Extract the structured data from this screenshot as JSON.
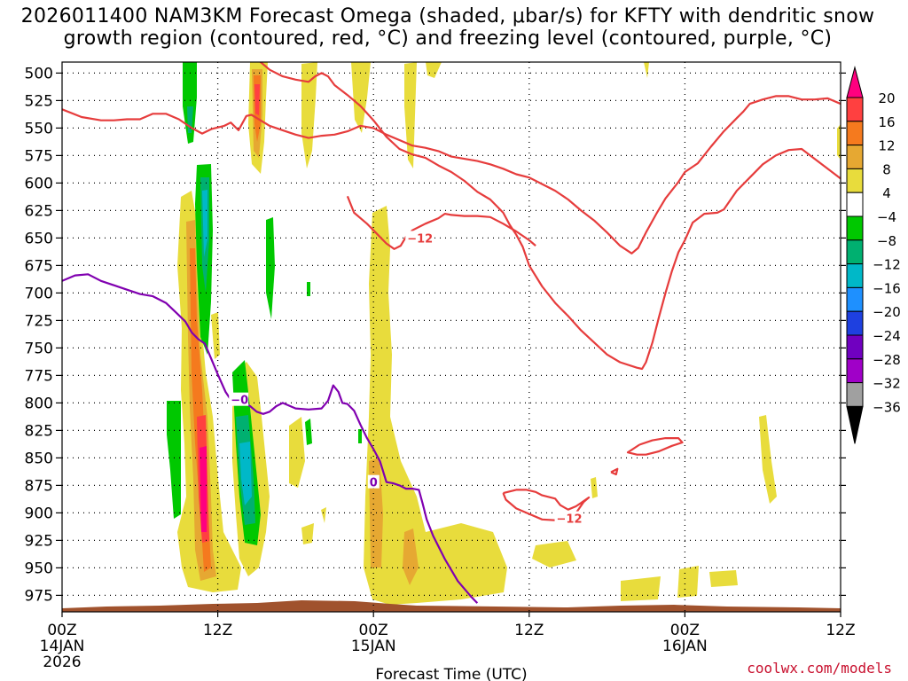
{
  "title": {
    "line1": "2026011400 NAM3KM Forecast Omega (shaded, μbar/s) for KFTY with dendritic snow",
    "line2": "growth region (contoured, red, °C) and freezing level (contoured, purple, °C)"
  },
  "credit": "coolwx.com/models",
  "chart_data": {
    "type": "heatmap",
    "xlabel": "Forecast Time (UTC)",
    "ylabel": "",
    "x_range_hours": [
      0,
      60
    ],
    "y_range_hpa": [
      490,
      990
    ],
    "y_ticks": [
      500,
      525,
      550,
      575,
      600,
      625,
      650,
      675,
      700,
      725,
      750,
      775,
      800,
      825,
      850,
      875,
      900,
      925,
      950,
      975
    ],
    "x_ticks": [
      {
        "hour": 0,
        "label1": "00Z",
        "label2": "14JAN",
        "label3": "2026"
      },
      {
        "hour": 12,
        "label1": "12Z",
        "label2": "",
        "label3": ""
      },
      {
        "hour": 24,
        "label1": "00Z",
        "label2": "15JAN",
        "label3": ""
      },
      {
        "hour": 36,
        "label1": "12Z",
        "label2": "",
        "label3": ""
      },
      {
        "hour": 48,
        "label1": "00Z",
        "label2": "16JAN",
        "label3": ""
      },
      {
        "hour": 60,
        "label1": "12Z",
        "label2": "",
        "label3": ""
      }
    ],
    "grid": "dotted",
    "colorbar": {
      "levels": [
        "20",
        "16",
        "12",
        "8",
        "4",
        "−4",
        "−8",
        "−12",
        "−16",
        "−20",
        "−24",
        "−28",
        "−32",
        "−36"
      ],
      "colors": [
        "#ff007f",
        "#ff4040",
        "#f57a1e",
        "#e6a832",
        "#e8dc3c",
        "#ffffff",
        "#00c800",
        "#00b070",
        "#00b8c8",
        "#1e90ff",
        "#1e40e0",
        "#7000c0",
        "#a000c8",
        "#a0a0a0"
      ]
    },
    "contour_labels": [
      {
        "text": "−12",
        "color": "#e63c3c",
        "hour": 26.6,
        "hpa": 650
      },
      {
        "text": "−12",
        "color": "#e63c3c",
        "hour": 38.1,
        "hpa": 905
      },
      {
        "text": "−0",
        "color": "#8000b0",
        "hour": 13.0,
        "hpa": 797
      },
      {
        "text": "0",
        "color": "#8000b0",
        "hour": 23.7,
        "hpa": 872
      }
    ],
    "series": [
      {
        "color": "#e63c3c",
        "points": [
          [
            0,
            533
          ],
          [
            1.5,
            540
          ],
          [
            3,
            543
          ],
          [
            4,
            543
          ],
          [
            5,
            542
          ],
          [
            6,
            542
          ],
          [
            7,
            537
          ],
          [
            8,
            537
          ],
          [
            9,
            542
          ],
          [
            10,
            550
          ],
          [
            10.8,
            555
          ],
          [
            11.5,
            551
          ],
          [
            12.5,
            548
          ],
          [
            13,
            545
          ],
          [
            13.6,
            552
          ],
          [
            14.2,
            539
          ],
          [
            14.6,
            538
          ],
          [
            16,
            548
          ],
          [
            17,
            552
          ],
          [
            18,
            556
          ],
          [
            19,
            559
          ],
          [
            20,
            557
          ],
          [
            21,
            556
          ],
          [
            22,
            553
          ],
          [
            23,
            548
          ],
          [
            24,
            550
          ],
          [
            25,
            556
          ],
          [
            26,
            561
          ],
          [
            27,
            566
          ],
          [
            28,
            568
          ],
          [
            29,
            571
          ],
          [
            30,
            576
          ],
          [
            31,
            578
          ],
          [
            32,
            580
          ],
          [
            33,
            583
          ],
          [
            34,
            587
          ],
          [
            35,
            592
          ],
          [
            36,
            595
          ],
          [
            37,
            601
          ],
          [
            38,
            607
          ],
          [
            39,
            615
          ],
          [
            40,
            625
          ],
          [
            41,
            634
          ],
          [
            42,
            645
          ],
          [
            43,
            657
          ],
          [
            43.9,
            664
          ],
          [
            44.4,
            659
          ],
          [
            45,
            645
          ],
          [
            45.8,
            628
          ],
          [
            46.5,
            614
          ],
          [
            47.5,
            599
          ],
          [
            48,
            590
          ],
          [
            49,
            582
          ],
          [
            50,
            567
          ],
          [
            51,
            553
          ],
          [
            52,
            541
          ],
          [
            52.5,
            535
          ],
          [
            53,
            528
          ],
          [
            54,
            524
          ],
          [
            55,
            521
          ],
          [
            56,
            521
          ],
          [
            57,
            524
          ],
          [
            58,
            524
          ],
          [
            59,
            523
          ],
          [
            60,
            528
          ],
          [
            61,
            537
          ],
          [
            62,
            546
          ],
          [
            63,
            548
          ],
          [
            64,
            544
          ],
          [
            65.5,
            545
          ]
        ]
      },
      {
        "color": "#e63c3c",
        "points": [
          [
            7.5,
            487
          ],
          [
            8.5,
            488
          ],
          [
            9.5,
            488
          ],
          [
            10.5,
            488
          ]
        ]
      },
      {
        "color": "#e63c3c",
        "points": [
          [
            15,
            487
          ],
          [
            16,
            497
          ],
          [
            17,
            503
          ],
          [
            18,
            506
          ],
          [
            19,
            508
          ],
          [
            19.5,
            503
          ],
          [
            20,
            500
          ],
          [
            20.5,
            503
          ],
          [
            21,
            511
          ],
          [
            22,
            520
          ],
          [
            23,
            530
          ],
          [
            24,
            543
          ],
          [
            25,
            558
          ],
          [
            26,
            569
          ],
          [
            27,
            574
          ],
          [
            28,
            577
          ],
          [
            29,
            584
          ],
          [
            30,
            590
          ],
          [
            31,
            598
          ],
          [
            32,
            608
          ],
          [
            33,
            615
          ],
          [
            34,
            627
          ],
          [
            34.5,
            638
          ],
          [
            35,
            647
          ],
          [
            35.5,
            658
          ],
          [
            36,
            675
          ],
          [
            37,
            694
          ],
          [
            38,
            709
          ],
          [
            39,
            721
          ],
          [
            40,
            734
          ],
          [
            41,
            745
          ],
          [
            42,
            756
          ],
          [
            43,
            763
          ],
          [
            44.3,
            768
          ],
          [
            44.7,
            769
          ],
          [
            45,
            763
          ],
          [
            45.5,
            745
          ],
          [
            46,
            722
          ],
          [
            46.5,
            700
          ],
          [
            47,
            680
          ],
          [
            47.5,
            663
          ],
          [
            48,
            652
          ],
          [
            48.6,
            636
          ],
          [
            49.5,
            628
          ],
          [
            50.5,
            627
          ],
          [
            51,
            624
          ],
          [
            52,
            607
          ],
          [
            53,
            595
          ],
          [
            54,
            583
          ],
          [
            55,
            575
          ],
          [
            56,
            570
          ],
          [
            57,
            569
          ],
          [
            58,
            578
          ],
          [
            59,
            587
          ],
          [
            60,
            596
          ],
          [
            61,
            601
          ],
          [
            62,
            603
          ],
          [
            63,
            601
          ],
          [
            64,
            601
          ],
          [
            65.5,
            600
          ]
        ]
      },
      {
        "color": "#e63c3c",
        "points": [
          [
            22,
            612
          ],
          [
            22.5,
            627
          ],
          [
            23.5,
            637
          ],
          [
            24,
            643
          ],
          [
            24.5,
            649
          ],
          [
            25,
            655
          ],
          [
            25.6,
            660
          ],
          [
            26.1,
            657
          ],
          [
            26.5,
            649
          ],
          [
            27,
            643
          ],
          [
            28,
            637
          ],
          [
            29,
            632
          ],
          [
            29.5,
            628
          ],
          [
            30,
            629
          ],
          [
            31,
            630
          ],
          [
            32,
            630
          ],
          [
            33,
            631
          ],
          [
            34,
            637
          ],
          [
            35,
            644
          ],
          [
            36,
            652
          ],
          [
            36.5,
            657
          ]
        ]
      },
      {
        "color": "#e63c3c",
        "points": [
          [
            34,
            882
          ],
          [
            35,
            879
          ],
          [
            35.8,
            879
          ],
          [
            36.5,
            881
          ],
          [
            37,
            884
          ],
          [
            38,
            887
          ],
          [
            38.4,
            893
          ],
          [
            39,
            897
          ],
          [
            39.6,
            894
          ],
          [
            40,
            891
          ],
          [
            40.6,
            886
          ],
          [
            40.2,
            890
          ],
          [
            39.5,
            902
          ],
          [
            38.5,
            907
          ],
          [
            37,
            906
          ],
          [
            36,
            901
          ],
          [
            35,
            896
          ],
          [
            34.2,
            888
          ],
          [
            34,
            882
          ]
        ]
      },
      {
        "color": "#e63c3c",
        "points": [
          [
            44.5,
            838
          ],
          [
            45.5,
            834
          ],
          [
            46.5,
            832
          ],
          [
            47.5,
            832
          ],
          [
            47.8,
            836
          ],
          [
            47,
            839
          ],
          [
            46,
            844
          ],
          [
            45,
            847
          ],
          [
            44.3,
            847
          ],
          [
            43.6,
            845
          ],
          [
            44.5,
            838
          ]
        ]
      },
      {
        "color": "#e63c3c",
        "points": [
          [
            42.3,
            863
          ],
          [
            42.8,
            860
          ],
          [
            42.7,
            865
          ],
          [
            42.3,
            863
          ]
        ]
      },
      {
        "color": "#8000b0",
        "points": [
          [
            0,
            689
          ],
          [
            1,
            684
          ],
          [
            2,
            683
          ],
          [
            3,
            689
          ],
          [
            4,
            693
          ],
          [
            5,
            697
          ],
          [
            6,
            701
          ],
          [
            7,
            703
          ],
          [
            8,
            709
          ],
          [
            8.8,
            718
          ],
          [
            9.5,
            726
          ],
          [
            10,
            736
          ],
          [
            10.5,
            742
          ],
          [
            11,
            746
          ],
          [
            11.5,
            760
          ],
          [
            12,
            774
          ],
          [
            12.6,
            790
          ],
          [
            13,
            797
          ],
          [
            14,
            800
          ],
          [
            14.5,
            803
          ],
          [
            15,
            808
          ],
          [
            15.5,
            810
          ],
          [
            16,
            808
          ],
          [
            16.5,
            803
          ],
          [
            17,
            800
          ],
          [
            18,
            805
          ],
          [
            19,
            806
          ],
          [
            20,
            805
          ],
          [
            20.5,
            798
          ],
          [
            20.9,
            784
          ],
          [
            21.3,
            790
          ],
          [
            21.6,
            800
          ],
          [
            22,
            801
          ],
          [
            22.5,
            807
          ],
          [
            23,
            820
          ],
          [
            23.5,
            832
          ],
          [
            24,
            842
          ],
          [
            24.5,
            853
          ],
          [
            25,
            872
          ],
          [
            25.5,
            873
          ],
          [
            26,
            875
          ],
          [
            26.5,
            878
          ],
          [
            27,
            878
          ],
          [
            27.5,
            879
          ],
          [
            27.8,
            892
          ],
          [
            28.1,
            906
          ],
          [
            28.6,
            921
          ],
          [
            29.5,
            942
          ],
          [
            30.5,
            962
          ],
          [
            31.5,
            976
          ],
          [
            32,
            982
          ]
        ]
      }
    ]
  }
}
